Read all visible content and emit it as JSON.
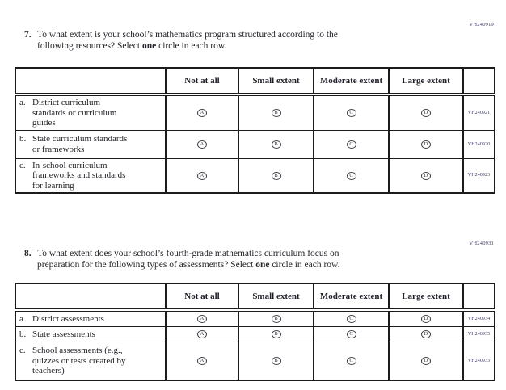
{
  "colors": {
    "page_background": "#ffffff",
    "text": "#232329",
    "table_border": "#1b1b1b",
    "code_text": "#3a3a5e"
  },
  "answer_letters": [
    "A",
    "B",
    "C",
    "D"
  ],
  "q7": {
    "code": "VH240919",
    "number": "7.",
    "seg1": "To what extent is your school’s mathematics program structured according to the\nfollowing resources? Select ",
    "bold": "one",
    "seg2": " circle in each row.",
    "headers": [
      "Not at all",
      "Small extent",
      "Moderate extent",
      "Large extent"
    ],
    "rows": [
      {
        "letter": "a.",
        "label": "District curriculum\nstandards or curriculum\nguides",
        "code": "VH240921"
      },
      {
        "letter": "b.",
        "label": "State curriculum standards\nor frameworks",
        "code": "VH240920"
      },
      {
        "letter": "c.",
        "label": "In-school curriculum\nframeworks and standards\nfor learning",
        "code": "VH240923"
      }
    ]
  },
  "q8": {
    "code": "VH240931",
    "number": "8.",
    "seg1": "To what extent does your school’s fourth-grade mathematics curriculum focus on\npreparation for the following types of assessments? Select ",
    "bold": "one",
    "seg2": " circle in each row.",
    "headers": [
      "Not at all",
      "Small extent",
      "Moderate extent",
      "Large extent"
    ],
    "rows": [
      {
        "letter": "a.",
        "label": "District assessments",
        "code": "VH240934"
      },
      {
        "letter": "b.",
        "label": "State assessments",
        "code": "VH240935"
      },
      {
        "letter": "c.",
        "label": "School assessments (e.g.,\nquizzes or tests created by\nteachers)",
        "code": "VH240933"
      }
    ]
  }
}
